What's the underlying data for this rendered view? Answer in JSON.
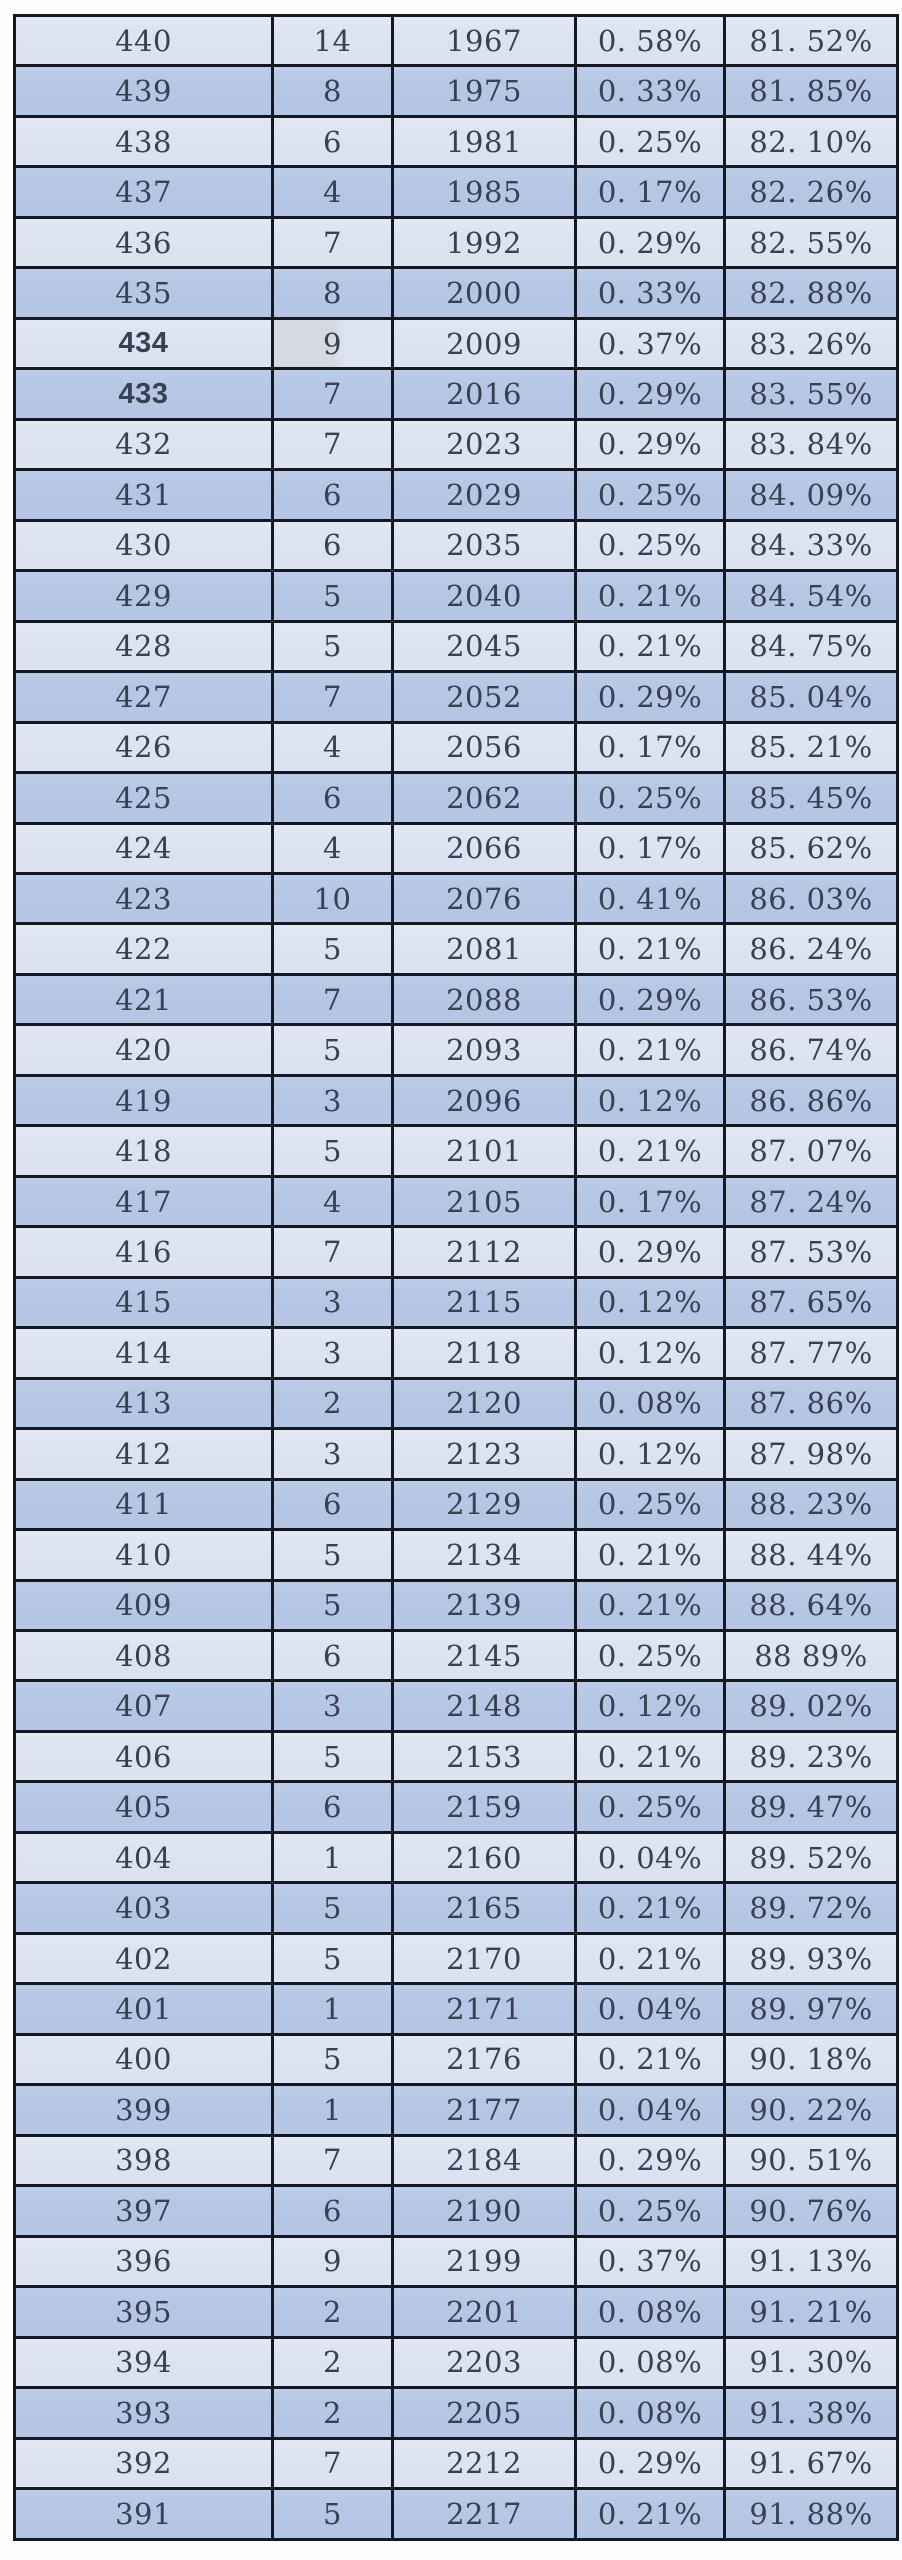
{
  "table": {
    "rows": [
      [
        "440",
        "14",
        "1967",
        "0. 58%",
        "81. 52%"
      ],
      [
        "439",
        "8",
        "1975",
        "0. 33%",
        "81. 85%"
      ],
      [
        "438",
        "6",
        "1981",
        "0. 25%",
        "82. 10%"
      ],
      [
        "437",
        "4",
        "1985",
        "0. 17%",
        "82. 26%"
      ],
      [
        "436",
        "7",
        "1992",
        "0. 29%",
        "82. 55%"
      ],
      [
        "435",
        "8",
        "2000",
        "0. 33%",
        "82. 88%"
      ],
      [
        "434",
        "9",
        "2009",
        "0. 37%",
        "83. 26%"
      ],
      [
        "433",
        "7",
        "2016",
        "0. 29%",
        "83. 55%"
      ],
      [
        "432",
        "7",
        "2023",
        "0. 29%",
        "83. 84%"
      ],
      [
        "431",
        "6",
        "2029",
        "0. 25%",
        "84. 09%"
      ],
      [
        "430",
        "6",
        "2035",
        "0. 25%",
        "84. 33%"
      ],
      [
        "429",
        "5",
        "2040",
        "0. 21%",
        "84. 54%"
      ],
      [
        "428",
        "5",
        "2045",
        "0. 21%",
        "84. 75%"
      ],
      [
        "427",
        "7",
        "2052",
        "0. 29%",
        "85. 04%"
      ],
      [
        "426",
        "4",
        "2056",
        "0. 17%",
        "85. 21%"
      ],
      [
        "425",
        "6",
        "2062",
        "0. 25%",
        "85. 45%"
      ],
      [
        "424",
        "4",
        "2066",
        "0. 17%",
        "85. 62%"
      ],
      [
        "423",
        "10",
        "2076",
        "0. 41%",
        "86. 03%"
      ],
      [
        "422",
        "5",
        "2081",
        "0. 21%",
        "86. 24%"
      ],
      [
        "421",
        "7",
        "2088",
        "0. 29%",
        "86. 53%"
      ],
      [
        "420",
        "5",
        "2093",
        "0. 21%",
        "86. 74%"
      ],
      [
        "419",
        "3",
        "2096",
        "0. 12%",
        "86. 86%"
      ],
      [
        "418",
        "5",
        "2101",
        "0. 21%",
        "87. 07%"
      ],
      [
        "417",
        "4",
        "2105",
        "0. 17%",
        "87. 24%"
      ],
      [
        "416",
        "7",
        "2112",
        "0. 29%",
        "87. 53%"
      ],
      [
        "415",
        "3",
        "2115",
        "0. 12%",
        "87. 65%"
      ],
      [
        "414",
        "3",
        "2118",
        "0. 12%",
        "87. 77%"
      ],
      [
        "413",
        "2",
        "2120",
        "0. 08%",
        "87. 86%"
      ],
      [
        "412",
        "3",
        "2123",
        "0. 12%",
        "87. 98%"
      ],
      [
        "411",
        "6",
        "2129",
        "0. 25%",
        "88. 23%"
      ],
      [
        "410",
        "5",
        "2134",
        "0. 21%",
        "88. 44%"
      ],
      [
        "409",
        "5",
        "2139",
        "0. 21%",
        "88. 64%"
      ],
      [
        "408",
        "6",
        "2145",
        "0. 25%",
        "88 89%"
      ],
      [
        "407",
        "3",
        "2148",
        "0. 12%",
        "89. 02%"
      ],
      [
        "406",
        "5",
        "2153",
        "0. 21%",
        "89. 23%"
      ],
      [
        "405",
        "6",
        "2159",
        "0. 25%",
        "89. 47%"
      ],
      [
        "404",
        "1",
        "2160",
        "0. 04%",
        "89. 52%"
      ],
      [
        "403",
        "5",
        "2165",
        "0. 21%",
        "89. 72%"
      ],
      [
        "402",
        "5",
        "2170",
        "0. 21%",
        "89. 93%"
      ],
      [
        "401",
        "1",
        "2171",
        "0. 04%",
        "89. 97%"
      ],
      [
        "400",
        "5",
        "2176",
        "0. 21%",
        "90. 18%"
      ],
      [
        "399",
        "1",
        "2177",
        "0. 04%",
        "90. 22%"
      ],
      [
        "398",
        "7",
        "2184",
        "0. 29%",
        "90. 51%"
      ],
      [
        "397",
        "6",
        "2190",
        "0. 25%",
        "90. 76%"
      ],
      [
        "396",
        "9",
        "2199",
        "0. 37%",
        "91. 13%"
      ],
      [
        "395",
        "2",
        "2201",
        "0. 08%",
        "91. 21%"
      ],
      [
        "394",
        "2",
        "2203",
        "0. 08%",
        "91. 30%"
      ],
      [
        "393",
        "2",
        "2205",
        "0. 08%",
        "91. 38%"
      ],
      [
        "392",
        "7",
        "2212",
        "0. 29%",
        "91. 67%"
      ],
      [
        "391",
        "5",
        "2217",
        "0. 21%",
        "91. 88%"
      ]
    ],
    "bold_scores": [
      "434",
      "433"
    ],
    "smudge_row": "434",
    "colors": {
      "row_light": "#dee4f2",
      "row_dark": "#b7c8e6",
      "border": "#141823",
      "text": "#384153",
      "bold_text": "#17191f",
      "page_bg": "#fdfdfe"
    }
  }
}
